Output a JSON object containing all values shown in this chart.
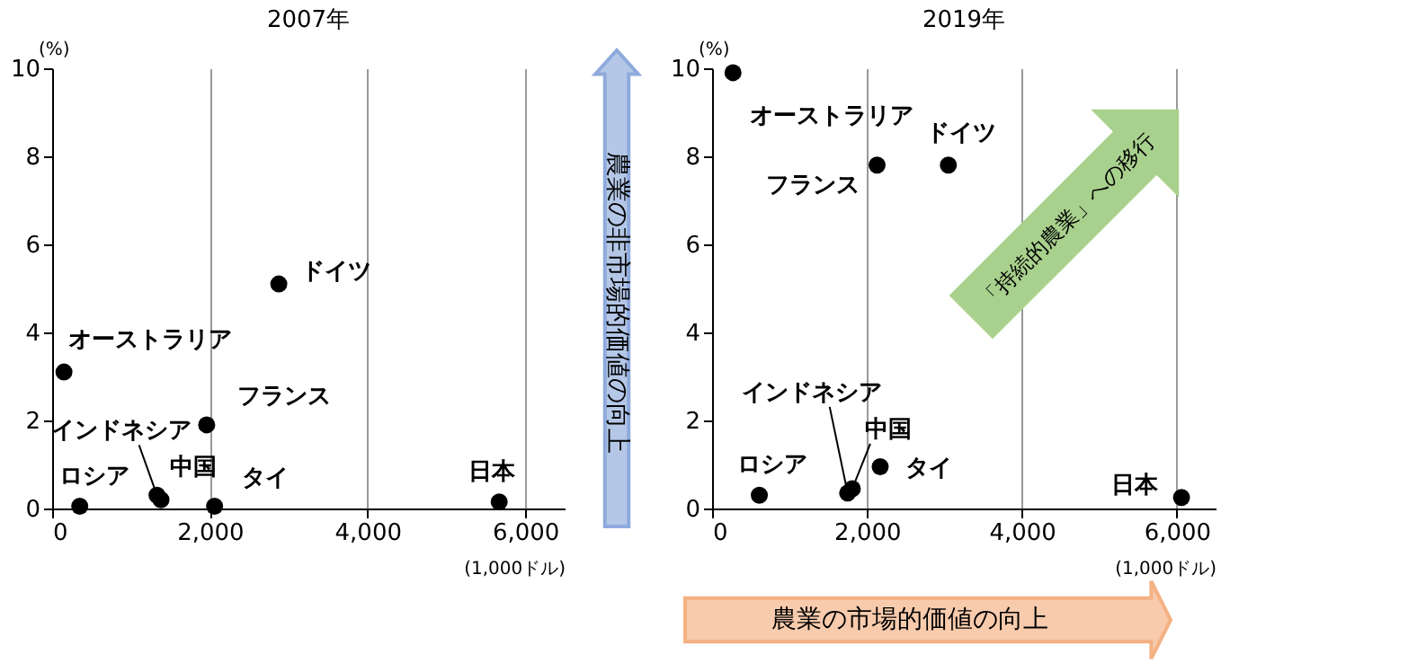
{
  "chart_data": [
    {
      "type": "scatter",
      "title": "2007年",
      "ylabel": "(%)",
      "xlabel": "(1,000ドル)",
      "xlim": [
        0,
        6500
      ],
      "ylim": [
        0,
        10
      ],
      "xticks": [
        0,
        {
          "value": 2000,
          "label": "2,000"
        },
        {
          "value": 4000,
          "label": "4,000"
        },
        {
          "value": 6000,
          "label": "6,000"
        }
      ],
      "yticks": [
        0,
        2,
        4,
        6,
        8,
        10
      ],
      "grid": "x",
      "marker": "circle",
      "series": [
        {
          "color": "#000000",
          "x": [
            150,
            2875,
            1960,
            1330,
            1380,
            350,
            2060,
            5670
          ],
          "values": [
            3.1,
            5.1,
            1.9,
            0.3,
            0.2,
            0.05,
            0.05,
            0.15
          ],
          "value_labels": [
            "オーストラリア",
            "ドイツ",
            "フランス",
            "インドネシア",
            "中国",
            "ロシア",
            "タイ",
            "日本"
          ]
        }
      ],
      "annotations": [
        "農業の非市場的価値の向上"
      ]
    },
    {
      "type": "scatter",
      "title": "2019年",
      "ylabel": "(%)",
      "xlabel": "(1,000ドル)",
      "xlim": [
        0,
        6500
      ],
      "ylim": [
        0,
        10
      ],
      "xticks": [
        0,
        {
          "value": 2000,
          "label": "2,000"
        },
        {
          "value": 4000,
          "label": "4,000"
        },
        {
          "value": 6000,
          "label": "6,000"
        }
      ],
      "yticks": [
        0,
        2,
        4,
        6,
        8,
        10
      ],
      "grid": "x",
      "marker": "circle",
      "series": [
        {
          "color": "#000000",
          "x": [
            270,
            2130,
            3050,
            1750,
            1810,
            610,
            2170,
            6060
          ],
          "values": [
            9.9,
            7.8,
            7.8,
            0.35,
            0.45,
            0.3,
            0.95,
            0.25
          ],
          "value_labels": [
            "オーストラリア",
            "フランス",
            "ドイツ",
            "インドネシア",
            "中国",
            "ロシア",
            "タイ",
            "日本"
          ]
        }
      ],
      "annotations": [
        "農業の市場的価値の向上",
        "「持続的農業」への移行"
      ]
    }
  ]
}
